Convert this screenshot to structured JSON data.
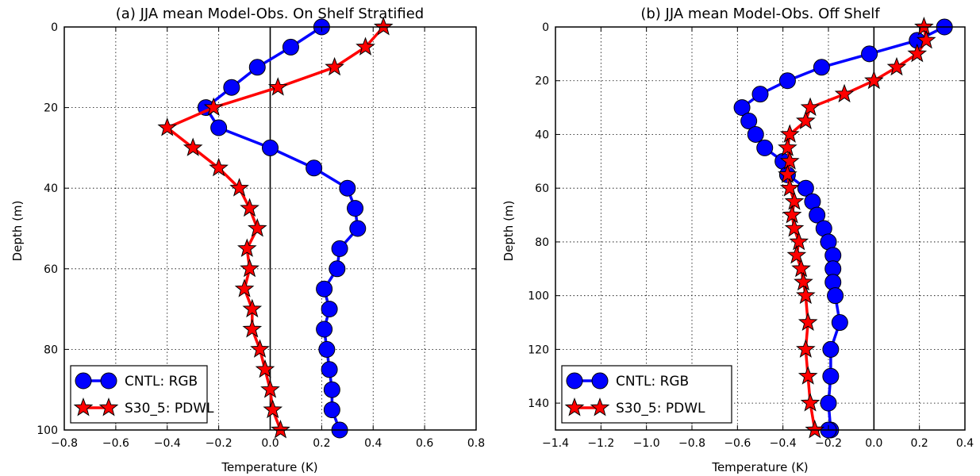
{
  "chart_data": [
    {
      "type": "line",
      "title": "(a) JJA mean Model-Obs. On Shelf Stratified",
      "xlabel": "Temperature (K)",
      "ylabel": "Depth (m)",
      "xlim": [
        -0.8,
        0.8
      ],
      "ylim": [
        100,
        0
      ],
      "y_inverted": true,
      "xticks": [
        -0.8,
        -0.6,
        -0.4,
        -0.2,
        0.0,
        0.2,
        0.4,
        0.6,
        0.8
      ],
      "yticks": [
        0,
        20,
        40,
        60,
        80,
        100
      ],
      "xtick_labels": [
        "−0.8",
        "−0.6",
        "−0.4",
        "−0.2",
        "0.0",
        "0.2",
        "0.4",
        "0.6",
        "0.8"
      ],
      "ytick_labels": [
        "0",
        "20",
        "40",
        "60",
        "80",
        "100"
      ],
      "grid": true,
      "zero_line": true,
      "legend_position": "lower-left",
      "series": [
        {
          "name": "CNTL: RGB",
          "color": "#0000ff",
          "marker": "circle",
          "x": [
            0.2,
            0.08,
            -0.05,
            -0.15,
            -0.25,
            -0.2,
            0.0,
            0.17,
            0.3,
            0.33,
            0.34,
            0.27,
            0.26,
            0.21,
            0.23,
            0.21,
            0.22,
            0.23,
            0.24,
            0.24,
            0.27
          ],
          "y": [
            0,
            5,
            10,
            15,
            20,
            25,
            30,
            35,
            40,
            45,
            50,
            55,
            60,
            65,
            70,
            75,
            80,
            85,
            90,
            95,
            100
          ]
        },
        {
          "name": "S30_5: PDWL",
          "color": "#ff0000",
          "marker": "star",
          "x": [
            0.44,
            0.37,
            0.25,
            0.03,
            -0.22,
            -0.4,
            -0.3,
            -0.2,
            -0.12,
            -0.08,
            -0.05,
            -0.09,
            -0.08,
            -0.1,
            -0.07,
            -0.07,
            -0.04,
            -0.02,
            0.0,
            0.01,
            0.04
          ],
          "y": [
            0,
            5,
            10,
            15,
            20,
            25,
            30,
            35,
            40,
            45,
            50,
            55,
            60,
            65,
            70,
            75,
            80,
            85,
            90,
            95,
            100
          ]
        }
      ]
    },
    {
      "type": "line",
      "title": "(b) JJA mean Model-Obs. Off Shelf",
      "xlabel": "Temperature (K)",
      "ylabel": "Depth (m)",
      "xlim": [
        -1.4,
        0.4
      ],
      "ylim": [
        150,
        0
      ],
      "y_inverted": true,
      "xticks": [
        -1.4,
        -1.2,
        -1.0,
        -0.8,
        -0.6,
        -0.4,
        -0.2,
        0.0,
        0.2,
        0.4
      ],
      "yticks": [
        0,
        20,
        40,
        60,
        80,
        100,
        120,
        140
      ],
      "xtick_labels": [
        "−1.4",
        "−1.2",
        "−1.0",
        "−0.8",
        "−0.6",
        "−0.4",
        "−0.2",
        "0.0",
        "0.2",
        "0.4"
      ],
      "ytick_labels": [
        "0",
        "20",
        "40",
        "60",
        "80",
        "100",
        "120",
        "140"
      ],
      "grid": true,
      "zero_line": true,
      "legend_position": "lower-left",
      "series": [
        {
          "name": "CNTL: RGB",
          "color": "#0000ff",
          "marker": "circle",
          "x": [
            0.31,
            0.19,
            -0.02,
            -0.23,
            -0.38,
            -0.5,
            -0.58,
            -0.55,
            -0.52,
            -0.48,
            -0.4,
            -0.38,
            -0.3,
            -0.27,
            -0.25,
            -0.22,
            -0.2,
            -0.18,
            -0.18,
            -0.18,
            -0.17,
            -0.15,
            -0.19,
            -0.19,
            -0.2,
            -0.19,
            -0.2
          ],
          "y": [
            0,
            5,
            10,
            15,
            20,
            25,
            30,
            35,
            40,
            45,
            50,
            55,
            60,
            65,
            70,
            75,
            80,
            85,
            90,
            95,
            100,
            110,
            120,
            130,
            140,
            150,
            150
          ]
        },
        {
          "name": "S30_5: PDWL",
          "color": "#ff0000",
          "marker": "star",
          "x": [
            0.22,
            0.23,
            0.19,
            0.1,
            0.0,
            -0.13,
            -0.28,
            -0.3,
            -0.37,
            -0.38,
            -0.37,
            -0.38,
            -0.37,
            -0.35,
            -0.36,
            -0.35,
            -0.33,
            -0.34,
            -0.32,
            -0.31,
            -0.3,
            -0.29,
            -0.3,
            -0.29,
            -0.28,
            -0.26
          ],
          "y": [
            0,
            5,
            10,
            15,
            20,
            25,
            30,
            35,
            40,
            45,
            50,
            55,
            60,
            65,
            70,
            75,
            80,
            85,
            90,
            95,
            100,
            110,
            120,
            130,
            140,
            150
          ]
        }
      ]
    }
  ]
}
